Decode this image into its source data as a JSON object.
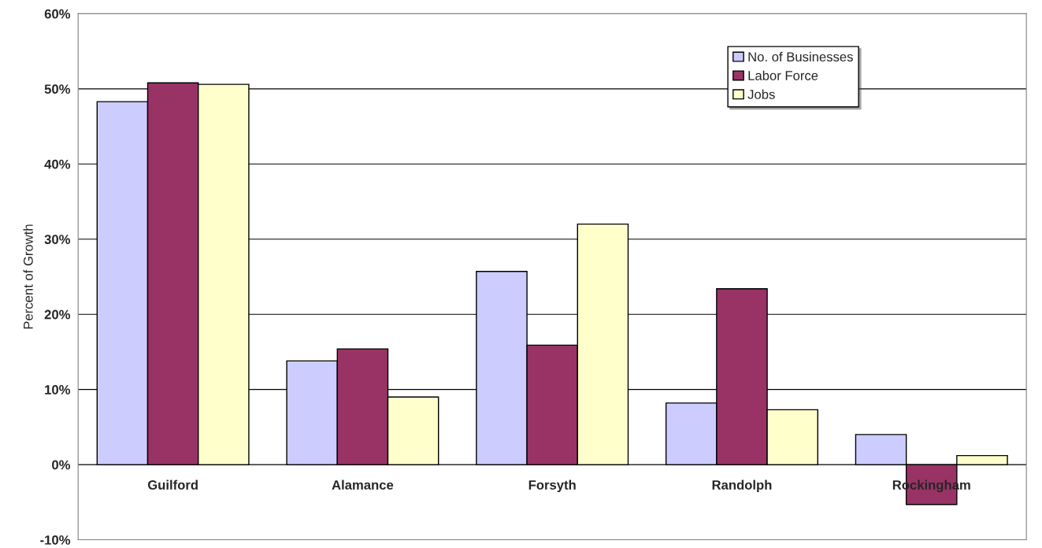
{
  "chart_data": {
    "type": "bar",
    "ylabel": "Percent of Growth",
    "categories": [
      "Guilford",
      "Alamance",
      "Forsyth",
      "Randolph",
      "Rockingham"
    ],
    "series": [
      {
        "name": "No. of Businesses",
        "color": "#ccccff",
        "values": [
          48.3,
          13.8,
          25.7,
          8.2,
          4.0
        ]
      },
      {
        "name": "Labor Force",
        "color": "#993366",
        "values": [
          50.8,
          15.4,
          15.9,
          23.4,
          -5.3
        ]
      },
      {
        "name": "Jobs",
        "color": "#ffffcc",
        "values": [
          50.6,
          9.0,
          32.0,
          7.3,
          1.2
        ]
      }
    ],
    "ylim": [
      -10,
      60
    ],
    "yticks": [
      {
        "value": -10,
        "label": "-10%"
      },
      {
        "value": 0,
        "label": "0%"
      },
      {
        "value": 10,
        "label": "10%"
      },
      {
        "value": 20,
        "label": "20%"
      },
      {
        "value": 30,
        "label": "30%"
      },
      {
        "value": 40,
        "label": "40%"
      },
      {
        "value": 50,
        "label": "50%"
      },
      {
        "value": 60,
        "label": "60%"
      }
    ],
    "grid": "y",
    "legend": "top right"
  }
}
